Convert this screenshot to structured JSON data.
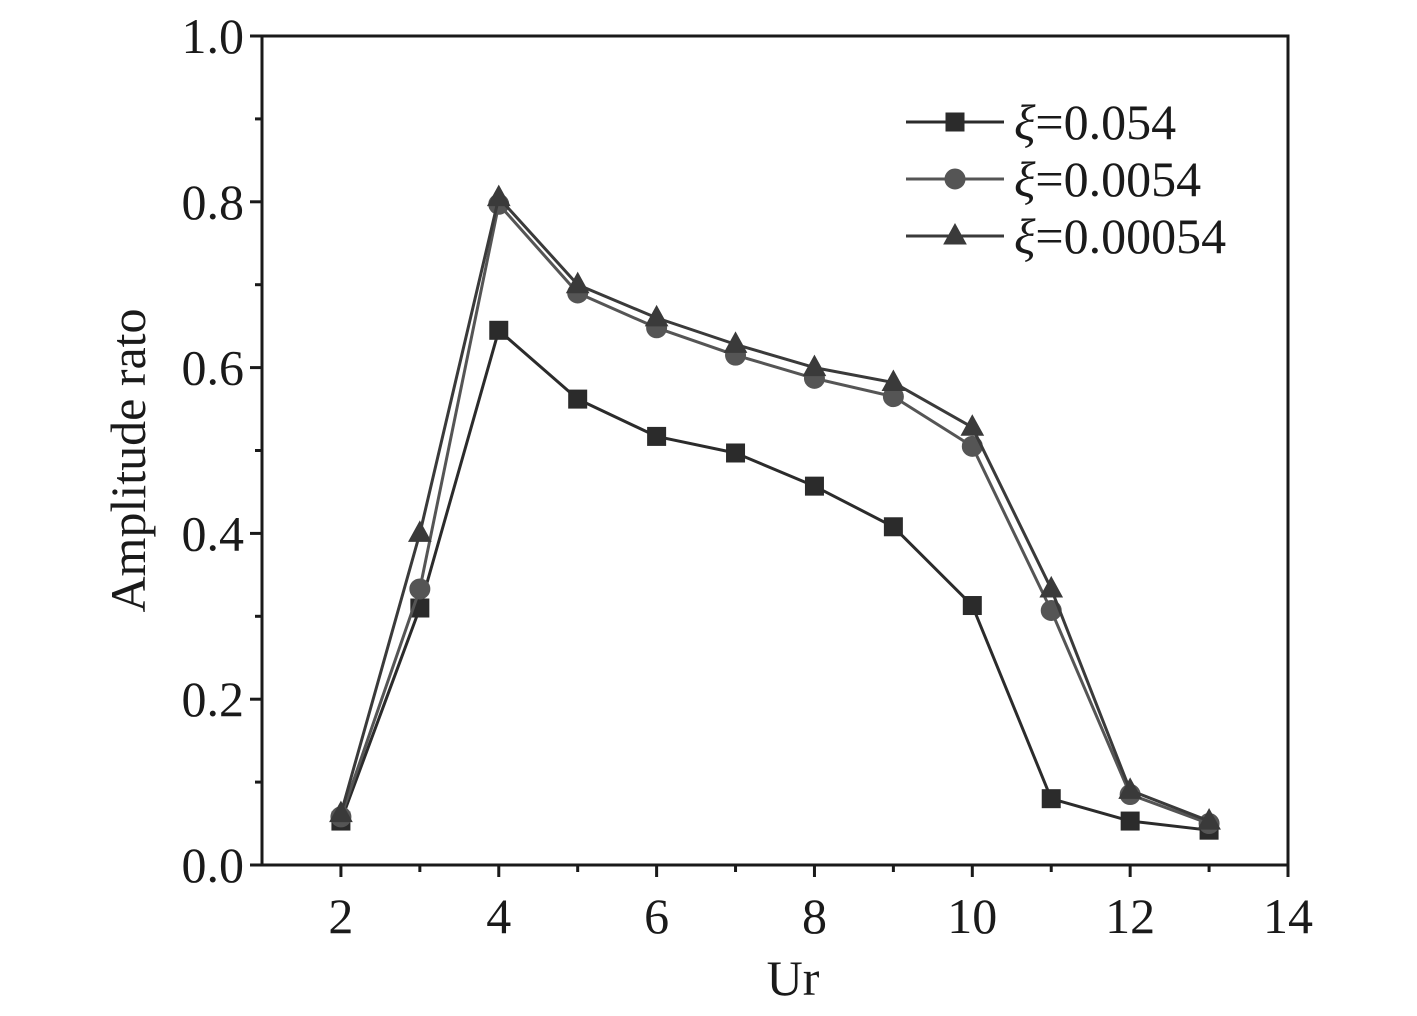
{
  "chart_data": {
    "type": "line",
    "xlabel": "Ur",
    "ylabel": "Amplitude rato",
    "xlim": [
      1,
      14
    ],
    "ylim": [
      0,
      1.0
    ],
    "xticks": [
      2,
      4,
      6,
      8,
      10,
      12,
      14
    ],
    "xtick_labels": [
      "2",
      "4",
      "6",
      "8",
      "10",
      "12",
      "14"
    ],
    "yticks": [
      0,
      0.2,
      0.4,
      0.6,
      0.8,
      1.0
    ],
    "ytick_labels": [
      "0.0",
      "0.2",
      "0.4",
      "0.6",
      "0.8",
      "1.0"
    ],
    "grid": false,
    "legend_position": "top-right",
    "x": [
      2,
      3,
      4,
      5,
      6,
      7,
      8,
      9,
      10,
      11,
      12,
      13
    ],
    "series": [
      {
        "name": "ξ=0.054",
        "symbol": "ξ",
        "label_rest": "=0.054",
        "marker": "square",
        "color": "#2b2b2b",
        "values": [
          0.053,
          0.31,
          0.645,
          0.562,
          0.517,
          0.497,
          0.457,
          0.408,
          0.313,
          0.08,
          0.053,
          0.042
        ]
      },
      {
        "name": "ξ=0.0054",
        "symbol": "ξ",
        "label_rest": "=0.0054",
        "marker": "circle",
        "color": "#555555",
        "values": [
          0.058,
          0.333,
          0.797,
          0.69,
          0.648,
          0.615,
          0.587,
          0.565,
          0.505,
          0.307,
          0.085,
          0.05
        ]
      },
      {
        "name": "ξ=0.00054",
        "symbol": "ξ",
        "label_rest": "=0.00054",
        "marker": "triangle",
        "color": "#3a3a3a",
        "values": [
          0.062,
          0.4,
          0.805,
          0.7,
          0.66,
          0.628,
          0.6,
          0.582,
          0.528,
          0.333,
          0.09,
          0.053
        ]
      }
    ]
  }
}
